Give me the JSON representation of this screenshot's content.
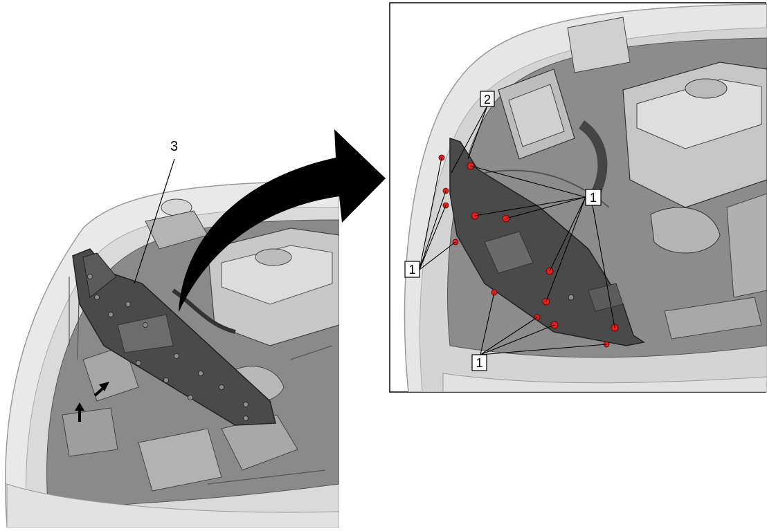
{
  "callouts": {
    "cover": "3",
    "bolt_detail": "2",
    "fastener_upper_right": "1",
    "fastener_left": "1",
    "fastener_bottom": "1"
  },
  "colors": {
    "paper": "#ffffff",
    "body_light": "#e9e9e9",
    "body_mid": "#cfcfcf",
    "engine_dark": "#7e7e7e",
    "panel": "#4a4a4a",
    "fastener": "#e02020",
    "ink": "#000000"
  },
  "icons": {
    "transfer": "curved-arrow-icon",
    "clip_release": "arrow-icon"
  }
}
